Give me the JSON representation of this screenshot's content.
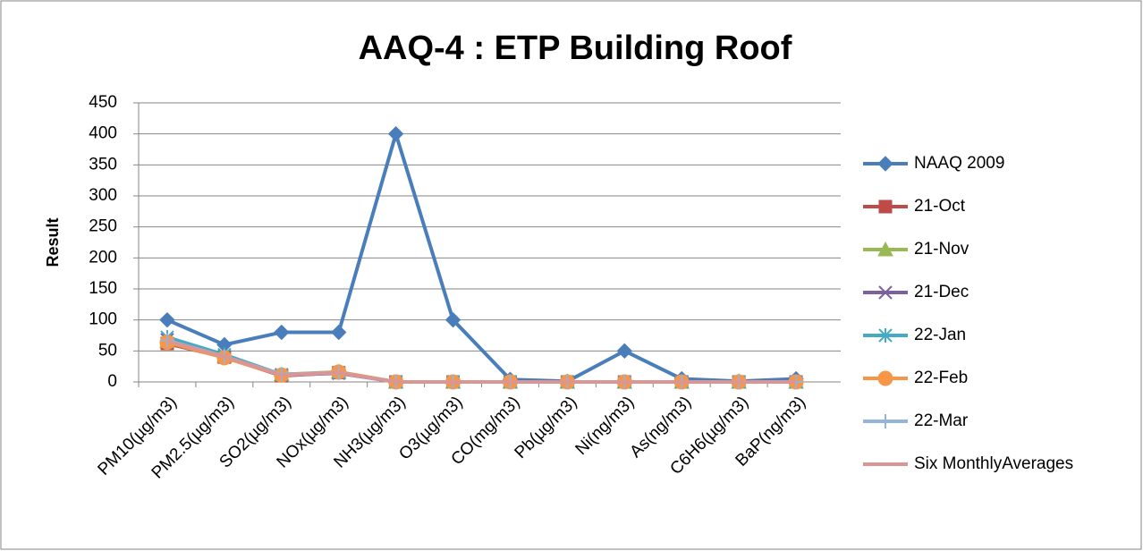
{
  "chart_data": {
    "type": "line",
    "title": "AAQ-4 :  ETP  Building Roof",
    "y_label": "Result",
    "categories": [
      "PM10(µg/m3)",
      "PM2.5(µg/m3)",
      "SO2(µg/m3)",
      "NOx(µg/m3)",
      "NH3(µg/m3)",
      "O3(µg/m3)",
      "CO(mg/m3)",
      "Pb(µg/m3)",
      "Ni(ng/m3)",
      "As(ng/m3)",
      "C6H6(µg/m3)",
      "BaP(ng/m3)"
    ],
    "series": [
      {
        "name": "NAAQ 2009",
        "color": "#4a7ebb",
        "marker": "diamond",
        "values": [
          100,
          60,
          80,
          80,
          400,
          100,
          4,
          1,
          50,
          5,
          1,
          5
        ]
      },
      {
        "name": "21-Oct",
        "color": "#be4b48",
        "marker": "square",
        "values": [
          62,
          40,
          10,
          15,
          0,
          0,
          0,
          0,
          0,
          0,
          0,
          0
        ]
      },
      {
        "name": "21-Nov",
        "color": "#98b954",
        "marker": "triangle",
        "values": [
          66,
          42,
          12,
          16,
          0,
          0,
          0,
          0,
          0,
          0,
          0,
          0
        ]
      },
      {
        "name": "21-Dec",
        "color": "#7d60a0",
        "marker": "x",
        "values": [
          68,
          41,
          11,
          14,
          0,
          0,
          0,
          0,
          0,
          0,
          0,
          0
        ]
      },
      {
        "name": "22-Jan",
        "color": "#46aac5",
        "marker": "star",
        "values": [
          72,
          44,
          12,
          15,
          0,
          0,
          0,
          0,
          0,
          0,
          0,
          0
        ]
      },
      {
        "name": "22-Feb",
        "color": "#f79646",
        "marker": "circle",
        "values": [
          64,
          39,
          11,
          16,
          0,
          0,
          0,
          0,
          0,
          0,
          0,
          0
        ]
      },
      {
        "name": "22-Mar",
        "color": "#94b4da",
        "marker": "plus",
        "values": [
          67,
          41,
          12,
          15,
          0,
          0,
          0,
          0,
          0,
          0,
          0,
          0
        ]
      },
      {
        "name": "Six MonthlyAverages",
        "color": "#d99694",
        "marker": "none",
        "values": [
          66,
          41,
          11,
          15,
          0,
          0,
          0,
          0,
          0,
          0,
          0,
          0
        ]
      }
    ],
    "ylim": [
      0,
      450
    ],
    "yticks": [
      0,
      50,
      100,
      150,
      200,
      250,
      300,
      350,
      400,
      450
    ],
    "grid": true,
    "legend": "right"
  }
}
